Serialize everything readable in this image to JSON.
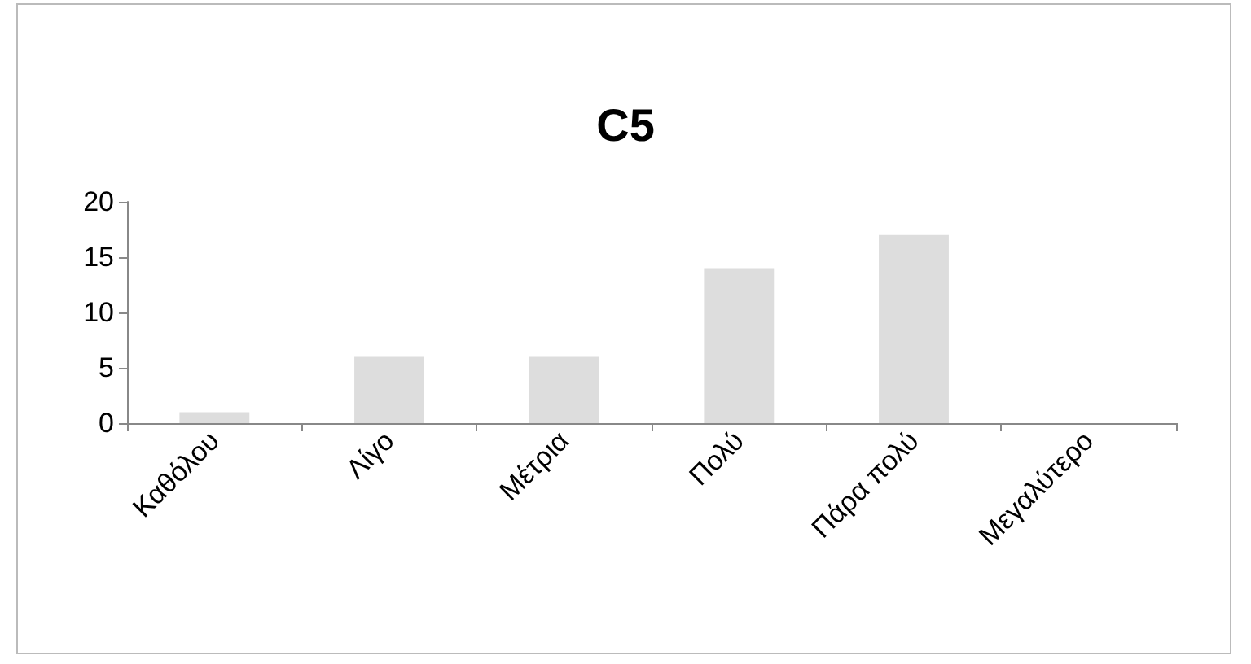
{
  "chart_data": {
    "type": "bar",
    "title": "C5",
    "categories": [
      "Καθόλου",
      "Λίγο",
      "Μέτρια",
      "Πολύ",
      "Πάρα πολύ",
      "Μεγαλύτερο"
    ],
    "values": [
      1,
      6,
      6,
      14,
      17,
      0
    ],
    "color": "#dddddd",
    "ylim": [
      0,
      20
    ],
    "yticks": [
      0,
      5,
      10,
      15,
      20
    ],
    "grid": false
  }
}
